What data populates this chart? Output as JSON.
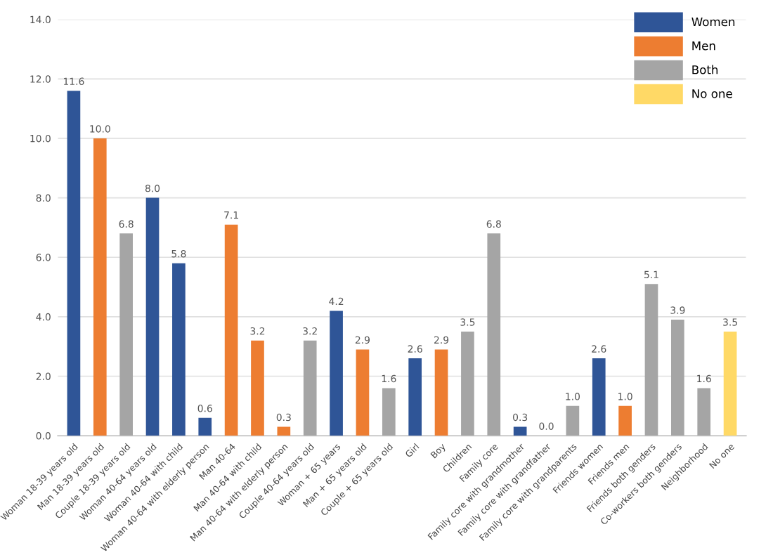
{
  "chart_data": {
    "type": "bar",
    "categories": [
      "Woman 18-39 years old",
      "Man 18-39 years old",
      "Couple 18-39 years old",
      "Woman 40-64 years old",
      "Woman 40-64 with child",
      "Woman 40-64 with elderly person",
      "Man 40-64",
      "Man 40-64 with child",
      "Man 40-64 with elderly person",
      "Couple 40-64 years old",
      "Woman + 65 years",
      "Man + 65 years old",
      "Couple + 65 years old",
      "Girl",
      "Boy",
      "Children",
      "Family core",
      "Family core with grandmother",
      "Family core with grandfather",
      "Family core with grandparents",
      "Friends women",
      "Friends men",
      "Friends both genders",
      "Co-workers both genders",
      "Neighborhood",
      "No one"
    ],
    "series": [
      {
        "name": "Women",
        "color": "#2f5597",
        "values": [
          11.6,
          null,
          null,
          8.0,
          5.8,
          0.6,
          null,
          null,
          null,
          null,
          4.2,
          null,
          null,
          2.6,
          null,
          null,
          null,
          0.3,
          null,
          null,
          2.6,
          null,
          null,
          null,
          null,
          null
        ],
        "value_labels": [
          "11.6",
          null,
          null,
          "8.0",
          "5.8",
          "0.6",
          null,
          null,
          null,
          null,
          "4.2",
          null,
          null,
          "2.6",
          null,
          null,
          null,
          "0.3",
          null,
          null,
          "2.6",
          null,
          null,
          null,
          null,
          null
        ]
      },
      {
        "name": "Men",
        "color": "#ed7d31",
        "values": [
          null,
          10.0,
          null,
          null,
          null,
          null,
          7.1,
          3.2,
          0.3,
          null,
          null,
          2.9,
          null,
          null,
          2.9,
          null,
          null,
          null,
          null,
          null,
          null,
          1.0,
          null,
          null,
          null,
          null
        ],
        "value_labels": [
          null,
          "10.0",
          null,
          null,
          null,
          null,
          "7.1",
          "3.2",
          "0.3",
          null,
          null,
          "2.9",
          null,
          null,
          "2.9",
          null,
          null,
          null,
          null,
          null,
          null,
          "1.0",
          null,
          null,
          null,
          null
        ]
      },
      {
        "name": "Both",
        "color": "#a5a5a5",
        "values": [
          null,
          null,
          6.8,
          null,
          null,
          null,
          null,
          null,
          null,
          3.2,
          null,
          null,
          1.6,
          null,
          null,
          3.5,
          6.8,
          null,
          0.0,
          1.0,
          null,
          null,
          5.1,
          3.9,
          1.6,
          null
        ],
        "value_labels": [
          null,
          null,
          "6.8",
          null,
          null,
          null,
          null,
          null,
          null,
          "3.2",
          null,
          null,
          "1.6",
          null,
          null,
          "3.5",
          "6.8",
          null,
          "0.0",
          "1.0",
          null,
          null,
          "5.1",
          "3.9",
          "1.6",
          null
        ]
      },
      {
        "name": "No one",
        "color": "#ffd966",
        "values": [
          null,
          null,
          null,
          null,
          null,
          null,
          null,
          null,
          null,
          null,
          null,
          null,
          null,
          null,
          null,
          null,
          null,
          null,
          null,
          null,
          null,
          null,
          null,
          null,
          null,
          3.5
        ],
        "value_labels": [
          null,
          null,
          null,
          null,
          null,
          null,
          null,
          null,
          null,
          null,
          null,
          null,
          null,
          null,
          null,
          null,
          null,
          null,
          null,
          null,
          null,
          null,
          null,
          null,
          null,
          "3.5"
        ]
      }
    ],
    "ylim": [
      0,
      14
    ],
    "yticks": [
      {
        "value": 0,
        "label": "0.0"
      },
      {
        "value": 2,
        "label": "2.0"
      },
      {
        "value": 4,
        "label": "4.0"
      },
      {
        "value": 6,
        "label": "6.0"
      },
      {
        "value": 8,
        "label": "8.0"
      },
      {
        "value": 10,
        "label": "10.0"
      },
      {
        "value": 12,
        "label": "12.0"
      },
      {
        "value": 14,
        "label": "14.0"
      }
    ],
    "grid": "y",
    "legend": "top right"
  }
}
